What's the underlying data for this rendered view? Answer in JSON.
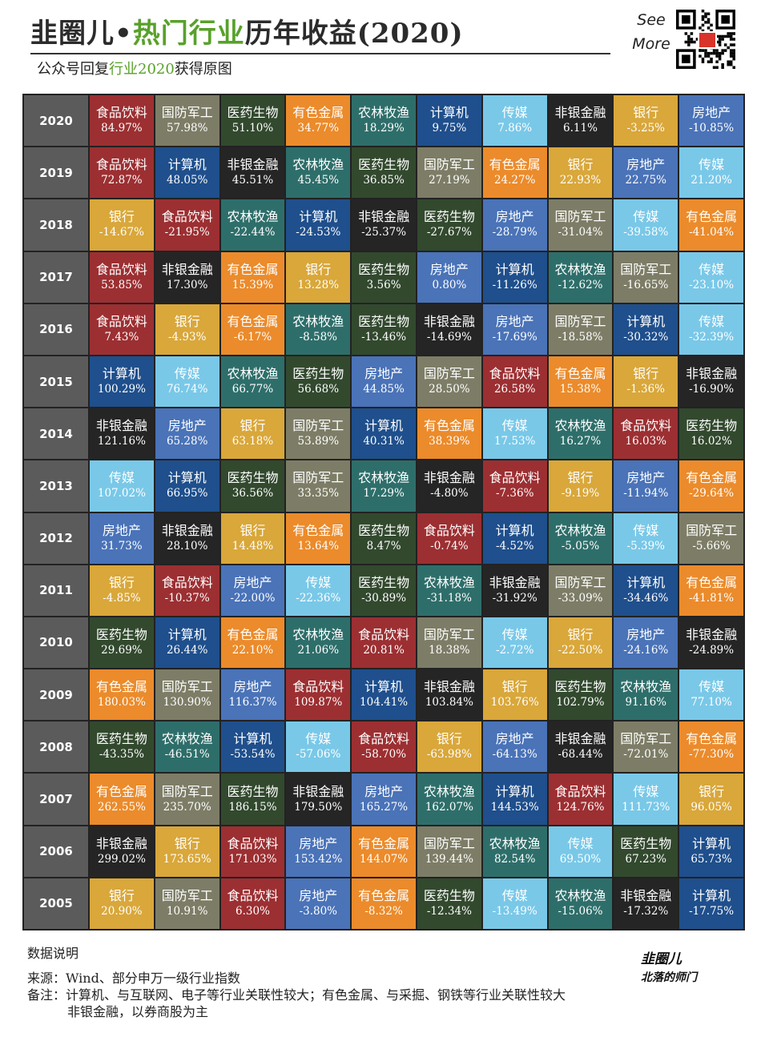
{
  "header": {
    "title_part1": "韭圈儿•",
    "title_part2": "热门行业",
    "title_part3": "历年收益(2020)",
    "subtitle_part1": "公众号回复",
    "subtitle_part2": "行业2020",
    "subtitle_part3": "获得原图",
    "see_more_1": "See",
    "see_more_2": "More",
    "qr_icon": "qr-code-icon"
  },
  "colors": {
    "食品饮料": "#9c2f32",
    "国防军工": "#7d7d67",
    "医药生物": "#32492e",
    "有色金属": "#eb8b2b",
    "农林牧渔": "#2e6e6a",
    "计算机": "#1f4f8c",
    "传媒": "#79c8e8",
    "非银金融": "#252525",
    "银行": "#d9a73a",
    "房地产": "#4a73b8",
    "year": "#5b5b5b"
  },
  "chart_data": {
    "type": "table",
    "title": "热门行业历年收益(2020)",
    "rows": [
      {
        "year": "2020",
        "cells": [
          [
            "食品饮料",
            "84.97%"
          ],
          [
            "国防军工",
            "57.98%"
          ],
          [
            "医药生物",
            "51.10%"
          ],
          [
            "有色金属",
            "34.77%"
          ],
          [
            "农林牧渔",
            "18.29%"
          ],
          [
            "计算机",
            "9.75%"
          ],
          [
            "传媒",
            "7.86%"
          ],
          [
            "非银金融",
            "6.11%"
          ],
          [
            "银行",
            "-3.25%"
          ],
          [
            "房地产",
            "-10.85%"
          ]
        ]
      },
      {
        "year": "2019",
        "cells": [
          [
            "食品饮料",
            "72.87%"
          ],
          [
            "计算机",
            "48.05%"
          ],
          [
            "非银金融",
            "45.51%"
          ],
          [
            "农林牧渔",
            "45.45%"
          ],
          [
            "医药生物",
            "36.85%"
          ],
          [
            "国防军工",
            "27.19%"
          ],
          [
            "有色金属",
            "24.27%"
          ],
          [
            "银行",
            "22.93%"
          ],
          [
            "房地产",
            "22.75%"
          ],
          [
            "传媒",
            "21.20%"
          ]
        ]
      },
      {
        "year": "2018",
        "cells": [
          [
            "银行",
            "-14.67%"
          ],
          [
            "食品饮料",
            "-21.95%"
          ],
          [
            "农林牧渔",
            "-22.44%"
          ],
          [
            "计算机",
            "-24.53%"
          ],
          [
            "非银金融",
            "-25.37%"
          ],
          [
            "医药生物",
            "-27.67%"
          ],
          [
            "房地产",
            "-28.79%"
          ],
          [
            "国防军工",
            "-31.04%"
          ],
          [
            "传媒",
            "-39.58%"
          ],
          [
            "有色金属",
            "-41.04%"
          ]
        ]
      },
      {
        "year": "2017",
        "cells": [
          [
            "食品饮料",
            "53.85%"
          ],
          [
            "非银金融",
            "17.30%"
          ],
          [
            "有色金属",
            "15.39%"
          ],
          [
            "银行",
            "13.28%"
          ],
          [
            "医药生物",
            "3.56%"
          ],
          [
            "房地产",
            "0.80%"
          ],
          [
            "计算机",
            "-11.26%"
          ],
          [
            "农林牧渔",
            "-12.62%"
          ],
          [
            "国防军工",
            "-16.65%"
          ],
          [
            "传媒",
            "-23.10%"
          ]
        ]
      },
      {
        "year": "2016",
        "cells": [
          [
            "食品饮料",
            "7.43%"
          ],
          [
            "银行",
            "-4.93%"
          ],
          [
            "有色金属",
            "-6.17%"
          ],
          [
            "农林牧渔",
            "-8.58%"
          ],
          [
            "医药生物",
            "-13.46%"
          ],
          [
            "非银金融",
            "-14.69%"
          ],
          [
            "房地产",
            "-17.69%"
          ],
          [
            "国防军工",
            "-18.58%"
          ],
          [
            "计算机",
            "-30.32%"
          ],
          [
            "传媒",
            "-32.39%"
          ]
        ]
      },
      {
        "year": "2015",
        "cells": [
          [
            "计算机",
            "100.29%"
          ],
          [
            "传媒",
            "76.74%"
          ],
          [
            "农林牧渔",
            "66.77%"
          ],
          [
            "医药生物",
            "56.68%"
          ],
          [
            "房地产",
            "44.85%"
          ],
          [
            "国防军工",
            "28.50%"
          ],
          [
            "食品饮料",
            "26.58%"
          ],
          [
            "有色金属",
            "15.38%"
          ],
          [
            "银行",
            "-1.36%"
          ],
          [
            "非银金融",
            "-16.90%"
          ]
        ]
      },
      {
        "year": "2014",
        "cells": [
          [
            "非银金融",
            "121.16%"
          ],
          [
            "房地产",
            "65.28%"
          ],
          [
            "银行",
            "63.18%"
          ],
          [
            "国防军工",
            "53.89%"
          ],
          [
            "计算机",
            "40.31%"
          ],
          [
            "有色金属",
            "38.39%"
          ],
          [
            "传媒",
            "17.53%"
          ],
          [
            "农林牧渔",
            "16.27%"
          ],
          [
            "食品饮料",
            "16.03%"
          ],
          [
            "医药生物",
            "16.02%"
          ]
        ]
      },
      {
        "year": "2013",
        "cells": [
          [
            "传媒",
            "107.02%"
          ],
          [
            "计算机",
            "66.95%"
          ],
          [
            "医药生物",
            "36.56%"
          ],
          [
            "国防军工",
            "33.35%"
          ],
          [
            "农林牧渔",
            "17.29%"
          ],
          [
            "非银金融",
            "-4.80%"
          ],
          [
            "食品饮料",
            "-7.36%"
          ],
          [
            "银行",
            "-9.19%"
          ],
          [
            "房地产",
            "-11.94%"
          ],
          [
            "有色金属",
            "-29.64%"
          ]
        ]
      },
      {
        "year": "2012",
        "cells": [
          [
            "房地产",
            "31.73%"
          ],
          [
            "非银金融",
            "28.10%"
          ],
          [
            "银行",
            "14.48%"
          ],
          [
            "有色金属",
            "13.64%"
          ],
          [
            "医药生物",
            "8.47%"
          ],
          [
            "食品饮料",
            "-0.74%"
          ],
          [
            "计算机",
            "-4.52%"
          ],
          [
            "农林牧渔",
            "-5.05%"
          ],
          [
            "传媒",
            "-5.39%"
          ],
          [
            "国防军工",
            "-5.66%"
          ]
        ]
      },
      {
        "year": "2011",
        "cells": [
          [
            "银行",
            "-4.85%"
          ],
          [
            "食品饮料",
            "-10.37%"
          ],
          [
            "房地产",
            "-22.00%"
          ],
          [
            "传媒",
            "-22.36%"
          ],
          [
            "医药生物",
            "-30.89%"
          ],
          [
            "农林牧渔",
            "-31.18%"
          ],
          [
            "非银金融",
            "-31.92%"
          ],
          [
            "国防军工",
            "-33.09%"
          ],
          [
            "计算机",
            "-34.46%"
          ],
          [
            "有色金属",
            "-41.81%"
          ]
        ]
      },
      {
        "year": "2010",
        "cells": [
          [
            "医药生物",
            "29.69%"
          ],
          [
            "计算机",
            "26.44%"
          ],
          [
            "有色金属",
            "22.10%"
          ],
          [
            "农林牧渔",
            "21.06%"
          ],
          [
            "食品饮料",
            "20.81%"
          ],
          [
            "国防军工",
            "18.38%"
          ],
          [
            "传媒",
            "-2.72%"
          ],
          [
            "银行",
            "-22.50%"
          ],
          [
            "房地产",
            "-24.16%"
          ],
          [
            "非银金融",
            "-24.89%"
          ]
        ]
      },
      {
        "year": "2009",
        "cells": [
          [
            "有色金属",
            "180.03%"
          ],
          [
            "国防军工",
            "130.90%"
          ],
          [
            "房地产",
            "116.37%"
          ],
          [
            "食品饮料",
            "109.87%"
          ],
          [
            "计算机",
            "104.41%"
          ],
          [
            "非银金融",
            "103.84%"
          ],
          [
            "银行",
            "103.76%"
          ],
          [
            "医药生物",
            "102.79%"
          ],
          [
            "农林牧渔",
            "91.16%"
          ],
          [
            "传媒",
            "77.10%"
          ]
        ]
      },
      {
        "year": "2008",
        "cells": [
          [
            "医药生物",
            "-43.35%"
          ],
          [
            "农林牧渔",
            "-46.51%"
          ],
          [
            "计算机",
            "-53.54%"
          ],
          [
            "传媒",
            "-57.06%"
          ],
          [
            "食品饮料",
            "-58.70%"
          ],
          [
            "银行",
            "-63.98%"
          ],
          [
            "房地产",
            "-64.13%"
          ],
          [
            "非银金融",
            "-68.44%"
          ],
          [
            "国防军工",
            "-72.01%"
          ],
          [
            "有色金属",
            "-77.30%"
          ]
        ]
      },
      {
        "year": "2007",
        "cells": [
          [
            "有色金属",
            "262.55%"
          ],
          [
            "国防军工",
            "235.70%"
          ],
          [
            "医药生物",
            "186.15%"
          ],
          [
            "非银金融",
            "179.50%"
          ],
          [
            "房地产",
            "165.27%"
          ],
          [
            "农林牧渔",
            "162.07%"
          ],
          [
            "计算机",
            "144.53%"
          ],
          [
            "食品饮料",
            "124.76%"
          ],
          [
            "传媒",
            "111.73%"
          ],
          [
            "银行",
            "96.05%"
          ]
        ]
      },
      {
        "year": "2006",
        "cells": [
          [
            "非银金融",
            "299.02%"
          ],
          [
            "银行",
            "173.65%"
          ],
          [
            "食品饮料",
            "171.03%"
          ],
          [
            "房地产",
            "153.42%"
          ],
          [
            "有色金属",
            "144.07%"
          ],
          [
            "国防军工",
            "139.44%"
          ],
          [
            "农林牧渔",
            "82.54%"
          ],
          [
            "传媒",
            "69.50%"
          ],
          [
            "医药生物",
            "67.23%"
          ],
          [
            "计算机",
            "65.73%"
          ]
        ]
      },
      {
        "year": "2005",
        "cells": [
          [
            "银行",
            "20.90%"
          ],
          [
            "国防军工",
            "10.91%"
          ],
          [
            "食品饮料",
            "6.30%"
          ],
          [
            "房地产",
            "-3.80%"
          ],
          [
            "有色金属",
            "-8.32%"
          ],
          [
            "医药生物",
            "-12.34%"
          ],
          [
            "传媒",
            "-13.49%"
          ],
          [
            "农林牧渔",
            "-15.06%"
          ],
          [
            "非银金融",
            "-17.32%"
          ],
          [
            "计算机",
            "-17.75%"
          ]
        ]
      }
    ]
  },
  "notes": {
    "heading": "数据说明",
    "source": "来源：Wind、部分申万一级行业指数",
    "remark_1": "备注：计算机、与互联网、电子等行业关联性较大；有色金属、与采掘、钢铁等行业关联性较大",
    "remark_2": "非银金融，以券商股为主"
  },
  "brand": {
    "line1": "韭圈儿",
    "line2": "北落的师门"
  }
}
